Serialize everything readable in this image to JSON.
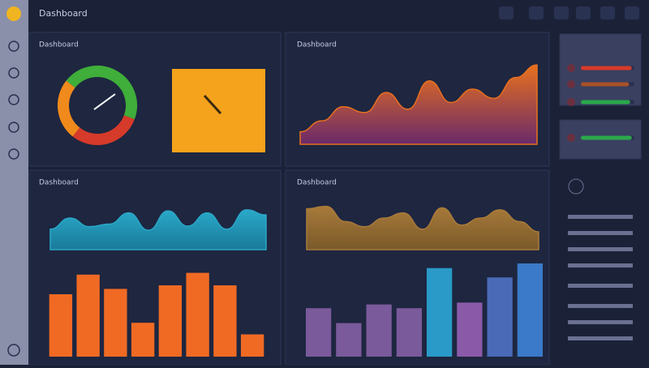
{
  "header": {
    "title": "Dashboard"
  },
  "chart_data": [
    {
      "type": "donut",
      "title": "Dashboard",
      "values": [
        45,
        30,
        25
      ],
      "colors": [
        "#3fae3a",
        "#d63a2a",
        "#f08a1c"
      ]
    },
    {
      "type": "area",
      "title": "Dashboard",
      "values": [
        15,
        28,
        45,
        38,
        62,
        42,
        76,
        50,
        66,
        55,
        80,
        95
      ],
      "ylim": [
        0,
        100
      ],
      "colors": [
        "#e8701e",
        "#6a2a6a"
      ]
    },
    {
      "type": "area",
      "title": "Dashboard",
      "values": [
        40,
        62,
        45,
        50,
        72,
        38,
        76,
        46,
        72,
        40,
        78,
        68
      ],
      "ylim": [
        0,
        100
      ],
      "colors": [
        "#2aa8c8",
        "#1a7a9a"
      ]
    },
    {
      "type": "bar",
      "values": [
        70,
        92,
        76,
        38,
        80,
        94,
        80,
        25
      ],
      "ylim": [
        0,
        100
      ],
      "colors": [
        "#f06a24",
        "#f06a24",
        "#f06a24",
        "#f06a24",
        "#f06a24",
        "#f06a24",
        "#f06a24",
        "#f06a24"
      ]
    },
    {
      "type": "area",
      "title": "Dashboard",
      "values": [
        80,
        85,
        55,
        45,
        62,
        72,
        40,
        82,
        48,
        62,
        78,
        55,
        35
      ],
      "ylim": [
        0,
        100
      ],
      "colors": [
        "#a87a3a",
        "#7a5a2a"
      ]
    },
    {
      "type": "bar",
      "values": [
        52,
        36,
        56,
        52,
        95,
        58,
        85,
        100
      ],
      "ylim": [
        0,
        100
      ],
      "colors": [
        "#7a5a9a",
        "#7a5a9a",
        "#7a5a9a",
        "#7a5a9a",
        "#2a9ac8",
        "#8a5aa8",
        "#4a6ab8",
        "#3a7ac8"
      ]
    },
    {
      "type": "progress",
      "values": [
        95,
        90,
        92,
        95
      ],
      "colors": [
        "#d63a2a",
        "#a8502a",
        "#2aa84a",
        "#2aa84a"
      ]
    }
  ]
}
